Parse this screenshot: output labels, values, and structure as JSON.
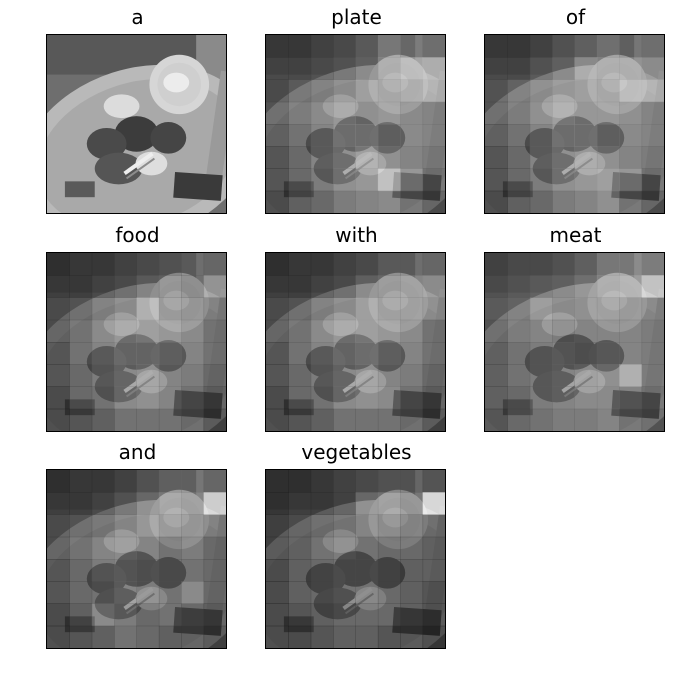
{
  "figure": {
    "panels": [
      {
        "caption": "a",
        "attention": null
      },
      {
        "caption": "plate",
        "attention": [
          [
            0.15,
            0.15,
            0.2,
            0.25,
            0.35,
            0.55,
            0.45,
            0.35
          ],
          [
            0.2,
            0.2,
            0.25,
            0.3,
            0.4,
            0.6,
            0.7,
            0.75
          ],
          [
            0.2,
            0.3,
            0.35,
            0.45,
            0.6,
            0.55,
            0.6,
            0.7
          ],
          [
            0.25,
            0.35,
            0.45,
            0.55,
            0.5,
            0.55,
            0.45,
            0.4
          ],
          [
            0.2,
            0.3,
            0.4,
            0.55,
            0.55,
            0.45,
            0.45,
            0.4
          ],
          [
            0.15,
            0.25,
            0.4,
            0.5,
            0.6,
            0.5,
            0.4,
            0.35
          ],
          [
            0.15,
            0.25,
            0.35,
            0.5,
            0.55,
            0.8,
            0.55,
            0.3
          ],
          [
            0.1,
            0.2,
            0.25,
            0.35,
            0.4,
            0.45,
            0.3,
            0.2
          ]
        ]
      },
      {
        "caption": "of",
        "attention": [
          [
            0.15,
            0.15,
            0.2,
            0.3,
            0.4,
            0.5,
            0.4,
            0.35
          ],
          [
            0.2,
            0.2,
            0.3,
            0.4,
            0.65,
            0.6,
            0.6,
            0.55
          ],
          [
            0.25,
            0.35,
            0.45,
            0.55,
            0.6,
            0.55,
            0.7,
            0.7
          ],
          [
            0.25,
            0.35,
            0.5,
            0.6,
            0.55,
            0.55,
            0.5,
            0.4
          ],
          [
            0.2,
            0.3,
            0.4,
            0.55,
            0.55,
            0.45,
            0.45,
            0.4
          ],
          [
            0.15,
            0.25,
            0.4,
            0.5,
            0.55,
            0.5,
            0.4,
            0.35
          ],
          [
            0.15,
            0.25,
            0.35,
            0.5,
            0.55,
            0.6,
            0.55,
            0.3
          ],
          [
            0.1,
            0.2,
            0.25,
            0.35,
            0.4,
            0.5,
            0.3,
            0.2
          ]
        ]
      },
      {
        "caption": "food",
        "attention": [
          [
            0.1,
            0.15,
            0.15,
            0.2,
            0.25,
            0.3,
            0.35,
            0.3
          ],
          [
            0.15,
            0.15,
            0.2,
            0.25,
            0.35,
            0.4,
            0.35,
            0.6
          ],
          [
            0.2,
            0.25,
            0.35,
            0.45,
            0.7,
            0.45,
            0.4,
            0.35
          ],
          [
            0.2,
            0.3,
            0.45,
            0.55,
            0.6,
            0.55,
            0.45,
            0.3
          ],
          [
            0.15,
            0.3,
            0.4,
            0.5,
            0.5,
            0.45,
            0.4,
            0.3
          ],
          [
            0.15,
            0.25,
            0.35,
            0.45,
            0.5,
            0.4,
            0.35,
            0.25
          ],
          [
            0.1,
            0.25,
            0.3,
            0.45,
            0.5,
            0.4,
            0.3,
            0.2
          ],
          [
            0.1,
            0.15,
            0.2,
            0.3,
            0.3,
            0.3,
            0.25,
            0.15
          ]
        ]
      },
      {
        "caption": "with",
        "attention": [
          [
            0.1,
            0.15,
            0.15,
            0.2,
            0.25,
            0.35,
            0.35,
            0.3
          ],
          [
            0.15,
            0.15,
            0.2,
            0.25,
            0.4,
            0.45,
            0.5,
            0.55
          ],
          [
            0.2,
            0.25,
            0.35,
            0.45,
            0.6,
            0.5,
            0.5,
            0.45
          ],
          [
            0.2,
            0.3,
            0.45,
            0.55,
            0.6,
            0.55,
            0.45,
            0.3
          ],
          [
            0.15,
            0.3,
            0.4,
            0.5,
            0.55,
            0.45,
            0.4,
            0.3
          ],
          [
            0.15,
            0.25,
            0.35,
            0.45,
            0.5,
            0.4,
            0.35,
            0.25
          ],
          [
            0.1,
            0.25,
            0.3,
            0.45,
            0.5,
            0.45,
            0.3,
            0.2
          ],
          [
            0.1,
            0.15,
            0.2,
            0.3,
            0.3,
            0.3,
            0.25,
            0.15
          ]
        ]
      },
      {
        "caption": "meat",
        "attention": [
          [
            0.2,
            0.25,
            0.25,
            0.3,
            0.4,
            0.55,
            0.55,
            0.45
          ],
          [
            0.25,
            0.3,
            0.35,
            0.4,
            0.5,
            0.6,
            0.65,
            0.85
          ],
          [
            0.3,
            0.35,
            0.55,
            0.45,
            0.5,
            0.5,
            0.45,
            0.4
          ],
          [
            0.25,
            0.35,
            0.4,
            0.35,
            0.4,
            0.4,
            0.4,
            0.35
          ],
          [
            0.2,
            0.3,
            0.35,
            0.4,
            0.35,
            0.4,
            0.4,
            0.35
          ],
          [
            0.2,
            0.3,
            0.35,
            0.4,
            0.45,
            0.5,
            0.7,
            0.35
          ],
          [
            0.2,
            0.25,
            0.35,
            0.4,
            0.45,
            0.45,
            0.4,
            0.3
          ],
          [
            0.15,
            0.25,
            0.3,
            0.35,
            0.35,
            0.4,
            0.3,
            0.25
          ]
        ]
      },
      {
        "caption": "and",
        "attention": [
          [
            0.1,
            0.15,
            0.15,
            0.2,
            0.3,
            0.4,
            0.4,
            0.3
          ],
          [
            0.15,
            0.15,
            0.2,
            0.3,
            0.45,
            0.55,
            0.5,
            0.9
          ],
          [
            0.2,
            0.25,
            0.3,
            0.4,
            0.55,
            0.45,
            0.4,
            0.35
          ],
          [
            0.2,
            0.3,
            0.4,
            0.45,
            0.4,
            0.3,
            0.35,
            0.25
          ],
          [
            0.15,
            0.25,
            0.35,
            0.4,
            0.35,
            0.3,
            0.3,
            0.25
          ],
          [
            0.15,
            0.25,
            0.3,
            0.4,
            0.35,
            0.3,
            0.45,
            0.25
          ],
          [
            0.1,
            0.2,
            0.45,
            0.35,
            0.25,
            0.3,
            0.25,
            0.2
          ],
          [
            0.1,
            0.15,
            0.2,
            0.3,
            0.25,
            0.2,
            0.2,
            0.15
          ]
        ]
      },
      {
        "caption": "vegetables",
        "attention": [
          [
            0.1,
            0.1,
            0.15,
            0.2,
            0.25,
            0.3,
            0.3,
            0.2
          ],
          [
            0.1,
            0.15,
            0.15,
            0.2,
            0.45,
            0.5,
            0.4,
            0.95
          ],
          [
            0.15,
            0.2,
            0.25,
            0.3,
            0.4,
            0.35,
            0.3,
            0.25
          ],
          [
            0.15,
            0.2,
            0.3,
            0.35,
            0.3,
            0.25,
            0.25,
            0.2
          ],
          [
            0.1,
            0.2,
            0.25,
            0.3,
            0.3,
            0.25,
            0.2,
            0.2
          ],
          [
            0.1,
            0.2,
            0.25,
            0.3,
            0.3,
            0.25,
            0.2,
            0.15
          ],
          [
            0.1,
            0.15,
            0.2,
            0.25,
            0.25,
            0.25,
            0.2,
            0.15
          ],
          [
            0.1,
            0.1,
            0.15,
            0.2,
            0.2,
            0.15,
            0.15,
            0.1
          ]
        ]
      }
    ]
  }
}
